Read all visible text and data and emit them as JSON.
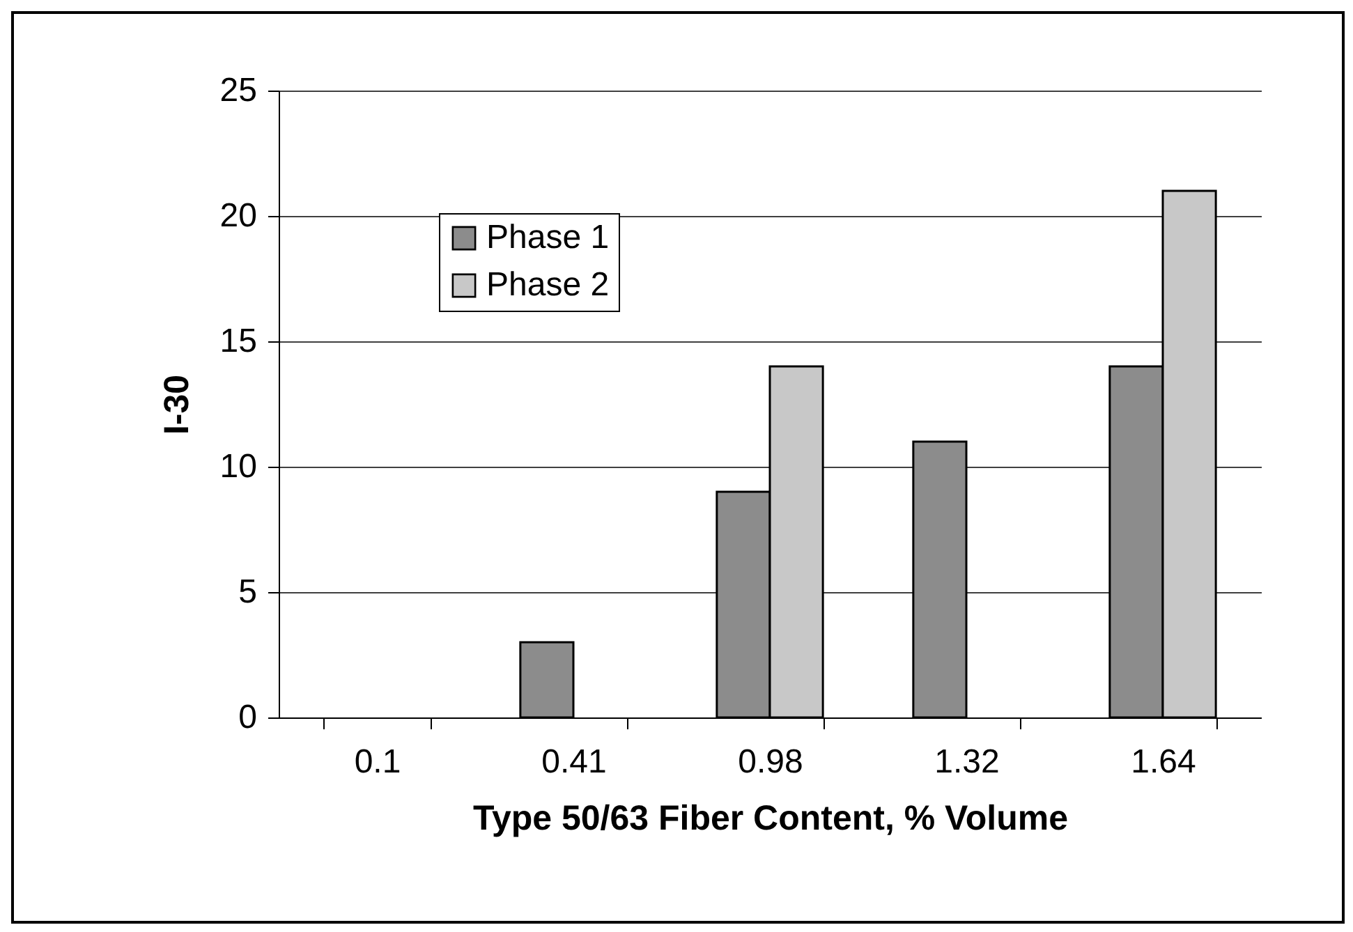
{
  "chart_data": {
    "type": "bar",
    "xlabel": "Type 50/63 Fiber Content, % Volume",
    "ylabel": "I-30",
    "categories": [
      "0.1",
      "0.41",
      "0.98",
      "1.32",
      "1.64"
    ],
    "series": [
      {
        "name": "Phase 1",
        "color": "#8c8c8c",
        "values": [
          null,
          3,
          9,
          11,
          14
        ]
      },
      {
        "name": "Phase 2",
        "color": "#c8c8c8",
        "values": [
          null,
          null,
          14,
          null,
          21
        ]
      }
    ],
    "ylim": [
      0,
      25
    ],
    "yticks": [
      0,
      5,
      10,
      15,
      20,
      25
    ],
    "grid": "y",
    "legend": "top left"
  }
}
